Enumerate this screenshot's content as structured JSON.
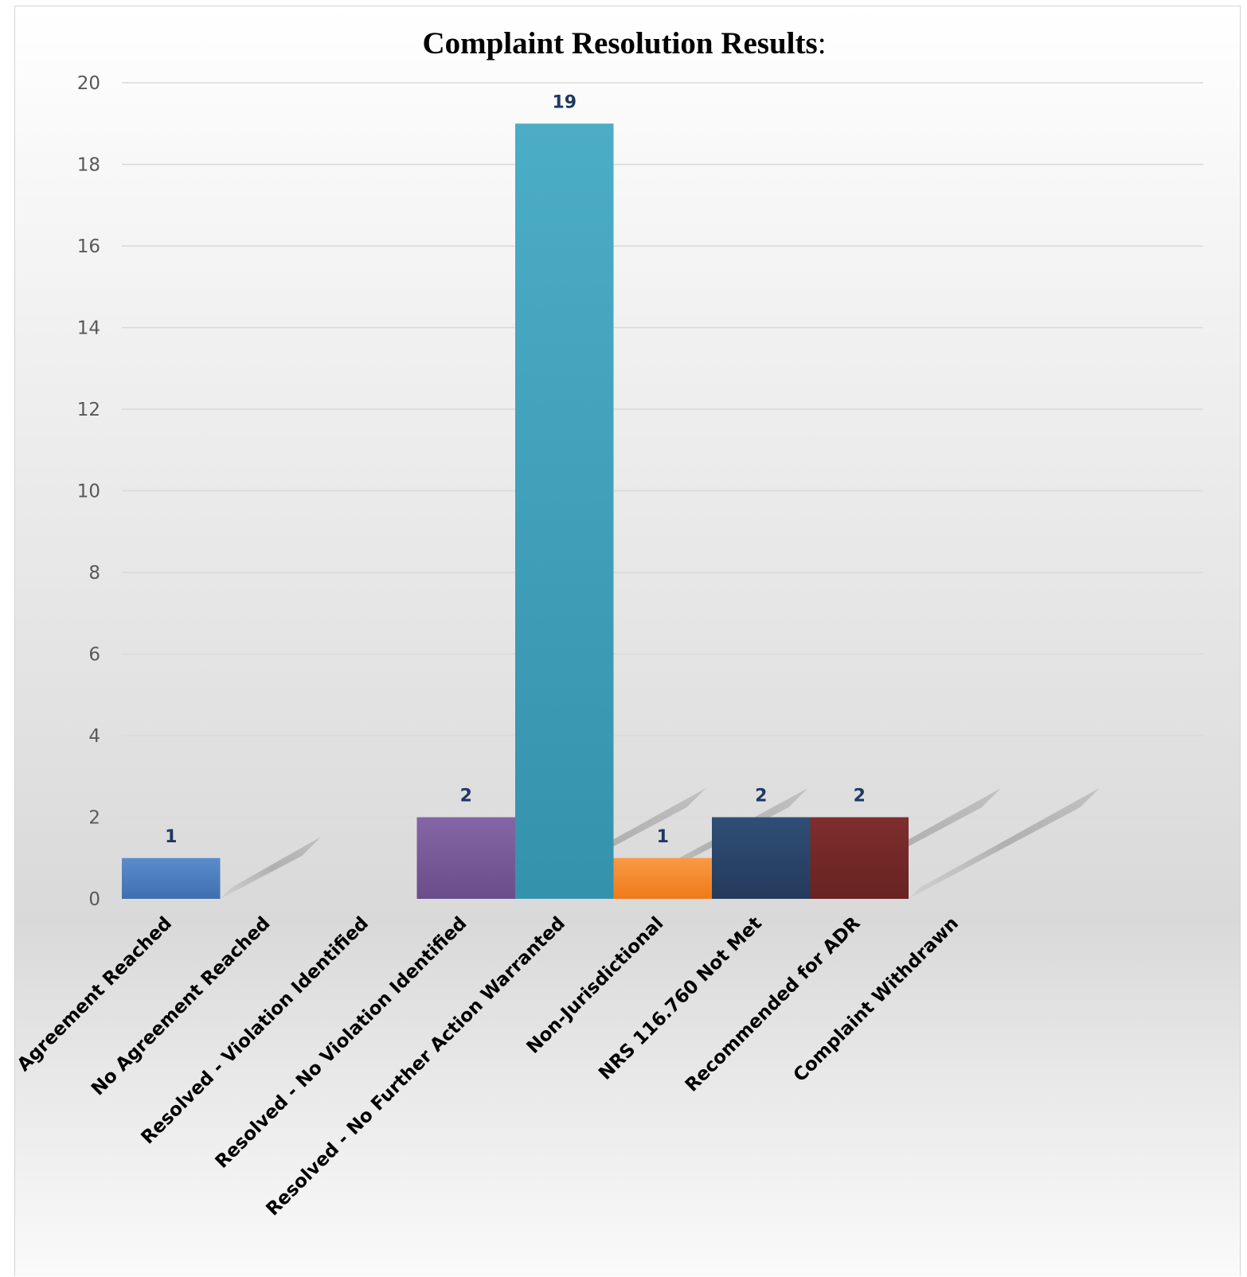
{
  "chart_data": {
    "type": "bar",
    "title": "Complaint Resolution Results",
    "title_suffix": ":",
    "xlabel": "",
    "ylabel": "",
    "ylim": [
      0,
      20
    ],
    "yticks": [
      0,
      2,
      4,
      6,
      8,
      10,
      12,
      14,
      16,
      18,
      20
    ],
    "grid": true,
    "legend": "none",
    "categories": [
      "Agreement Reached",
      "No Agreement Reached",
      "Resolved - Violation Identified",
      "Resolved - No Violation Identified",
      "Resolved - No Further Action Warranted",
      "Non-Jurisdictional",
      "NRS 116.760 Not Met",
      "Recommended for ADR",
      "Complaint Withdrawn"
    ],
    "values": [
      1,
      0,
      0,
      2,
      19,
      1,
      2,
      2,
      0
    ],
    "data_labels": [
      "1",
      "",
      "",
      "2",
      "19",
      "1",
      "2",
      "2",
      ""
    ],
    "colors": [
      [
        "#5a8ccc",
        "#3f6fae"
      ],
      [
        "#5a8ccc",
        "#3f6fae"
      ],
      [
        "#c0504d",
        "#9b3431"
      ],
      [
        "#8566a6",
        "#6a4d8a"
      ],
      [
        "#4cadc6",
        "#3592ac"
      ],
      [
        "#f99a45",
        "#ef7a1a"
      ],
      [
        "#2f4f77",
        "#243a5b"
      ],
      [
        "#7e2e2d",
        "#672322"
      ],
      [
        "#9bbb59",
        "#7f9c3f"
      ]
    ]
  }
}
